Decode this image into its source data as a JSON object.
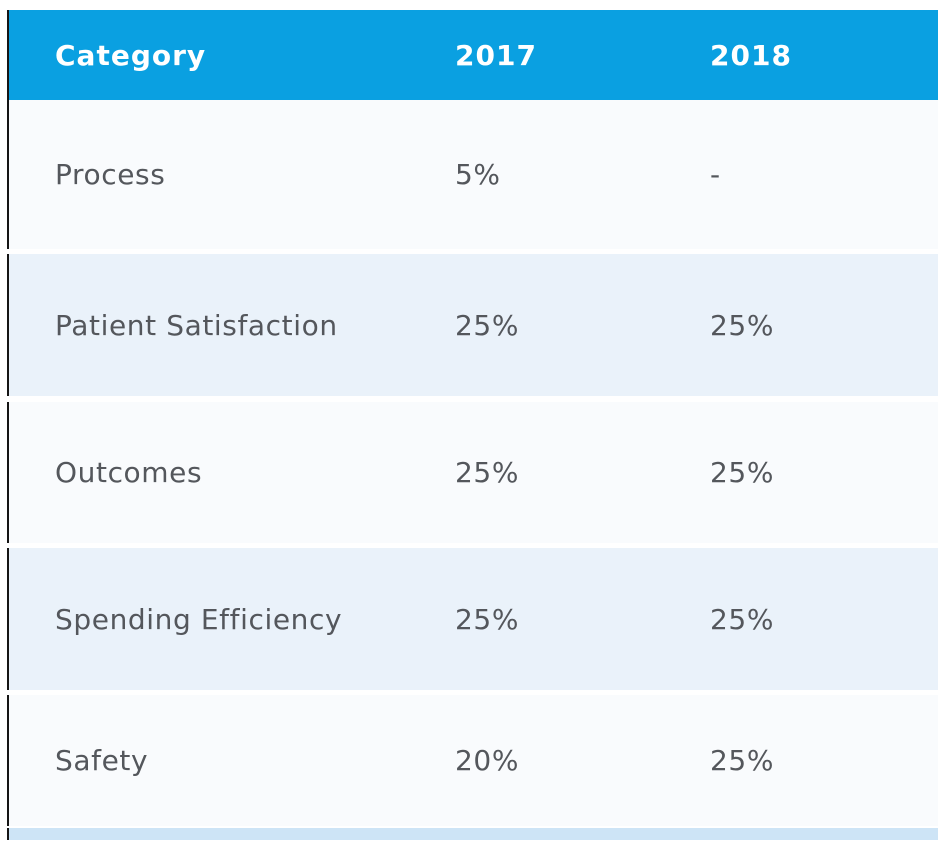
{
  "colors": {
    "header_bg": "#0aa0e1",
    "header_text": "#ffffff",
    "row_light": "#f9fbfd",
    "row_blue": "#eaf2fa",
    "bottom_strip": "#cde4f6",
    "cell_text": "#54575c",
    "left_border": "#151515"
  },
  "chart_data": {
    "type": "table",
    "columns": [
      "Category",
      "2017",
      "2018"
    ],
    "rows": [
      [
        "Process",
        "5%",
        "-"
      ],
      [
        "Patient Satisfaction",
        "25%",
        "25%"
      ],
      [
        "Outcomes",
        "25%",
        "25%"
      ],
      [
        "Spending Efficiency",
        "25%",
        "25%"
      ],
      [
        "Safety",
        "20%",
        "25%"
      ]
    ],
    "layout": {
      "row_striping": "alternating light/blue starting light",
      "header_position": "top",
      "clipped_next_row_visible": true
    }
  }
}
